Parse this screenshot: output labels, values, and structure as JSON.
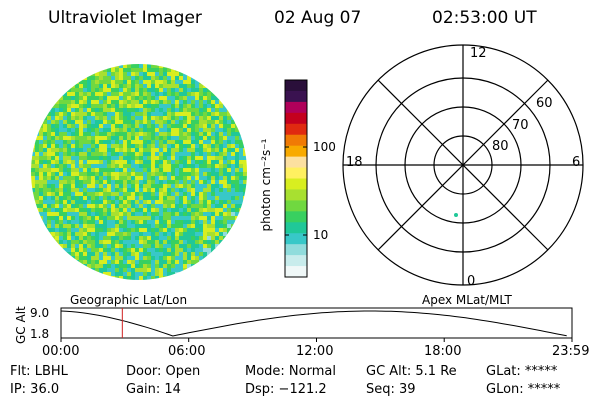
{
  "header": {
    "title": "Ultraviolet Imager",
    "date": "02 Aug 07",
    "time": "02:53:00 UT"
  },
  "colorbar": {
    "unit_label": "photon cm⁻²s⁻¹",
    "ticks": [
      "100",
      "10"
    ],
    "colors": [
      "#2a0f3a",
      "#3a1250",
      "#b0005a",
      "#c4001e",
      "#e02a10",
      "#f07a05",
      "#f8aa00",
      "#fce0a0",
      "#fff060",
      "#d8ee20",
      "#a8e030",
      "#70d840",
      "#38d060",
      "#20c898",
      "#38c8c8",
      "#90dcdc",
      "#c8ecec",
      "#f0f8f8"
    ]
  },
  "image": {
    "palette": [
      "#38d060",
      "#70d840",
      "#a8e030",
      "#d8ee20",
      "#20c898",
      "#38c8c8",
      "#90dcdc"
    ]
  },
  "polar": {
    "mlt_labels": [
      "12",
      "18",
      "6",
      "0"
    ],
    "lat_labels": [
      "60",
      "70",
      "80"
    ],
    "dot_color": "#20c898"
  },
  "timeline": {
    "left_label": "Geographic Lat/Lon",
    "right_label": "Apex MLat/MLT",
    "axis_label": "GC Alt",
    "y_ticks": [
      "9.0",
      "1.8"
    ],
    "x_ticks": [
      "00:00",
      "06:00",
      "12:00",
      "18:00",
      "23:59"
    ],
    "marker_time_h": 2.88,
    "marker_color": "#d02020"
  },
  "status": {
    "row1": [
      "Flt: LBHL",
      "Door: Open",
      "Mode: Normal",
      "GC Alt: 5.1 Re",
      "GLat: *****"
    ],
    "row2": [
      "IP: 36.0",
      "Gain: 14",
      "Dsp: −121.2",
      "Seq: 39",
      "GLon: *****"
    ]
  }
}
